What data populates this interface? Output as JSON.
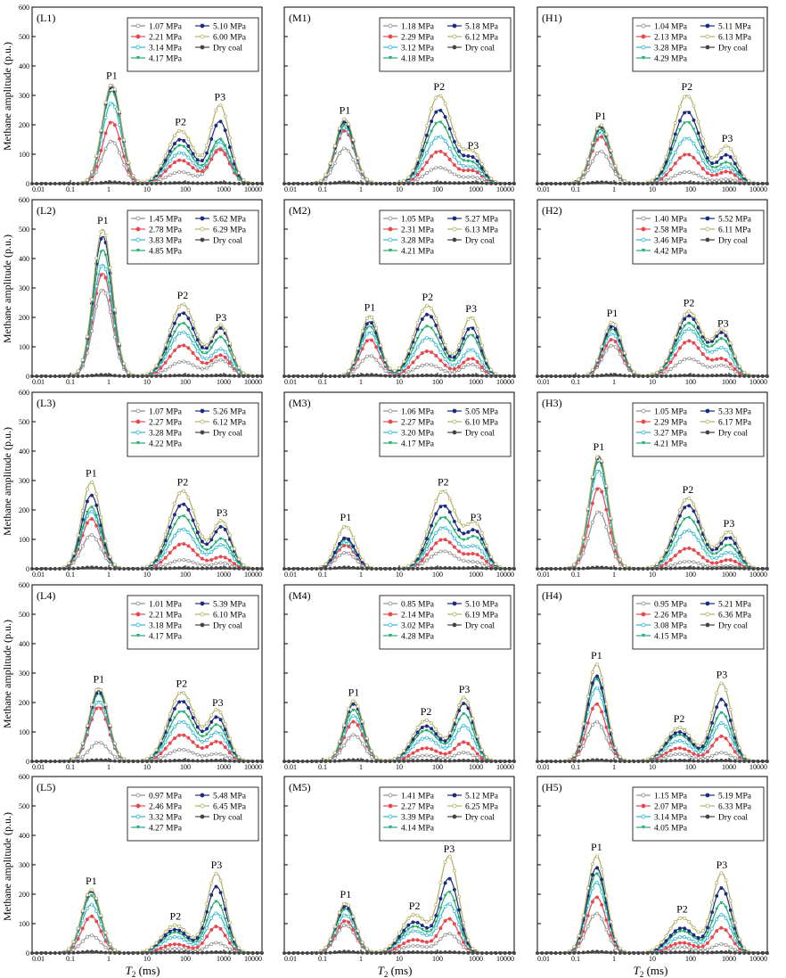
{
  "figure": {
    "y_axis_label": "Methane amplitude (p.u.)",
    "x_axis_label_main": "T",
    "x_axis_label_sub": "2",
    "x_axis_label_unit": " (ms)",
    "x_tick_labels": [
      "0.01",
      "0.1",
      "1",
      "10",
      "100",
      "1000",
      "10000"
    ],
    "y_tick_labels": [
      "0",
      "100",
      "200",
      "300",
      "400",
      "500",
      "600"
    ]
  },
  "styles": {
    "series_colors": [
      "#8e8e8e",
      "#e8474d",
      "#2cb6cf",
      "#1fae6f",
      "#1d2b7e",
      "#b3ad61",
      "#444444"
    ],
    "series_markers": [
      "open-circle",
      "filled-circle",
      "open-circle",
      "triangle",
      "filled-circle",
      "open-circle",
      "filled-circle"
    ]
  },
  "chart_data": [
    {
      "panel": "(L1)",
      "type": "line",
      "xlim": [
        0.01,
        10000
      ],
      "ylim": [
        0,
        600
      ],
      "x_scale": "log",
      "legend": [
        "1.07 MPa",
        "2.21 MPa",
        "3.14 MPa",
        "4.17 MPa",
        "5.10 MPa",
        "6.00 MPa",
        "Dry coal"
      ],
      "peaks": [
        {
          "label": "P1",
          "t2": 1.2,
          "values": [
            145,
            210,
            275,
            315,
            330,
            338,
            5
          ]
        },
        {
          "label": "P2",
          "t2": 75,
          "values": [
            40,
            80,
            105,
            130,
            150,
            180,
            3
          ]
        },
        {
          "label": "P3",
          "t2": 800,
          "values": [
            120,
            115,
            140,
            150,
            210,
            265,
            3
          ]
        }
      ]
    },
    {
      "panel": "(M1)",
      "type": "line",
      "xlim": [
        0.01,
        10000
      ],
      "ylim": [
        0,
        600
      ],
      "x_scale": "log",
      "legend": [
        "1.18 MPa",
        "2.29 MPa",
        "3.12 MPa",
        "4.18 MPa",
        "5.18 MPa",
        "6.12 MPa",
        "Dry coal"
      ],
      "peaks": [
        {
          "label": "P1",
          "t2": 0.38,
          "values": [
            120,
            180,
            190,
            200,
            210,
            220,
            5
          ]
        },
        {
          "label": "P2",
          "t2": 110,
          "values": [
            55,
            110,
            160,
            210,
            250,
            300,
            3
          ]
        },
        {
          "label": "P3",
          "t2": 850,
          "values": [
            20,
            40,
            50,
            65,
            80,
            100,
            3
          ]
        }
      ]
    },
    {
      "panel": "(H1)",
      "type": "line",
      "xlim": [
        0.01,
        10000
      ],
      "ylim": [
        0,
        600
      ],
      "x_scale": "log",
      "legend": [
        "1.04 MPa",
        "2.13 MPa",
        "3.28 MPa",
        "4.29 MPa",
        "5.11 MPa",
        "6.13 MPa",
        "Dry coal"
      ],
      "peaks": [
        {
          "label": "P1",
          "t2": 0.45,
          "values": [
            110,
            160,
            175,
            185,
            195,
            200,
            5
          ]
        },
        {
          "label": "P2",
          "t2": 80,
          "values": [
            40,
            100,
            155,
            210,
            245,
            300,
            3
          ]
        },
        {
          "label": "P3",
          "t2": 900,
          "values": [
            15,
            40,
            55,
            70,
            95,
            125,
            3
          ]
        }
      ]
    },
    {
      "panel": "(L2)",
      "type": "line",
      "xlim": [
        0.01,
        10000
      ],
      "ylim": [
        0,
        600
      ],
      "x_scale": "log",
      "legend": [
        "1.45 MPa",
        "2.78 MPa",
        "3.83 MPa",
        "4.85 MPa",
        "5.62 MPa",
        "6.29 MPa",
        "Dry coal"
      ],
      "peaks": [
        {
          "label": "P1",
          "t2": 0.7,
          "values": [
            295,
            350,
            380,
            430,
            475,
            500,
            5
          ]
        },
        {
          "label": "P2",
          "t2": 85,
          "values": [
            50,
            105,
            150,
            180,
            215,
            245,
            3
          ]
        },
        {
          "label": "P3",
          "t2": 850,
          "values": [
            55,
            70,
            90,
            130,
            160,
            170,
            3
          ]
        }
      ]
    },
    {
      "panel": "(M2)",
      "type": "line",
      "xlim": [
        0.01,
        10000
      ],
      "ylim": [
        0,
        600
      ],
      "x_scale": "log",
      "legend": [
        "1.05 MPa",
        "2.31 MPa",
        "3.28 MPa",
        "4.21 MPa",
        "5.27 MPa",
        "6.13 MPa",
        "Dry coal"
      ],
      "peaks": [
        {
          "label": "P1",
          "t2": 1.7,
          "values": [
            70,
            125,
            150,
            170,
            185,
            205,
            5
          ]
        },
        {
          "label": "P2",
          "t2": 55,
          "values": [
            40,
            85,
            130,
            170,
            210,
            240,
            3
          ]
        },
        {
          "label": "P3",
          "t2": 750,
          "values": [
            40,
            60,
            90,
            140,
            165,
            200,
            3
          ]
        }
      ]
    },
    {
      "panel": "(H2)",
      "type": "line",
      "xlim": [
        0.01,
        10000
      ],
      "ylim": [
        0,
        600
      ],
      "x_scale": "log",
      "legend": [
        "1.40 MPa",
        "2.58 MPa",
        "3.46 MPa",
        "4.42 MPa",
        "5.52 MPa",
        "6.11 MPa",
        "Dry coal"
      ],
      "peaks": [
        {
          "label": "P1",
          "t2": 0.9,
          "values": [
            105,
            125,
            145,
            160,
            170,
            185,
            5
          ]
        },
        {
          "label": "P2",
          "t2": 90,
          "values": [
            60,
            120,
            160,
            180,
            205,
            220,
            3
          ]
        },
        {
          "label": "P3",
          "t2": 700,
          "values": [
            35,
            55,
            90,
            120,
            140,
            150,
            3
          ]
        }
      ]
    },
    {
      "panel": "(L3)",
      "type": "line",
      "xlim": [
        0.01,
        10000
      ],
      "ylim": [
        0,
        600
      ],
      "x_scale": "log",
      "legend": [
        "1.07 MPa",
        "2.27 MPa",
        "3.28 MPa",
        "4.22 MPa",
        "5.26 MPa",
        "6.12 MPa",
        "Dry coal"
      ],
      "peaks": [
        {
          "label": "P1",
          "t2": 0.35,
          "values": [
            115,
            170,
            195,
            210,
            250,
            295,
            5
          ]
        },
        {
          "label": "P2",
          "t2": 85,
          "values": [
            30,
            85,
            135,
            180,
            220,
            265,
            3
          ]
        },
        {
          "label": "P3",
          "t2": 900,
          "values": [
            20,
            40,
            80,
            100,
            140,
            160,
            3
          ]
        }
      ]
    },
    {
      "panel": "(M3)",
      "type": "line",
      "xlim": [
        0.01,
        10000
      ],
      "ylim": [
        0,
        600
      ],
      "x_scale": "log",
      "legend": [
        "1.06 MPa",
        "2.27 MPa",
        "3.20 MPa",
        "4.17 MPa",
        "5.05 MPa",
        "6.10 MPa",
        "Dry coal"
      ],
      "peaks": [
        {
          "label": "P1",
          "t2": 0.4,
          "values": [
            55,
            80,
            90,
            100,
            105,
            145,
            5
          ]
        },
        {
          "label": "P2",
          "t2": 140,
          "values": [
            60,
            100,
            140,
            175,
            215,
            265,
            3
          ]
        },
        {
          "label": "P3",
          "t2": 1000,
          "values": [
            20,
            45,
            70,
            100,
            120,
            145,
            3
          ]
        }
      ]
    },
    {
      "panel": "(H3)",
      "type": "line",
      "xlim": [
        0.01,
        10000
      ],
      "ylim": [
        0,
        600
      ],
      "x_scale": "log",
      "legend": [
        "1.05 MPa",
        "2.29 MPa",
        "3.27 MPa",
        "4.21 MPa",
        "5.33 MPa",
        "6.17 MPa",
        "Dry coal"
      ],
      "peaks": [
        {
          "label": "P1",
          "t2": 0.4,
          "values": [
            195,
            275,
            335,
            365,
            380,
            385,
            5
          ]
        },
        {
          "label": "P2",
          "t2": 85,
          "values": [
            25,
            70,
            130,
            175,
            215,
            240,
            3
          ]
        },
        {
          "label": "P3",
          "t2": 1000,
          "values": [
            10,
            30,
            55,
            80,
            105,
            125,
            3
          ]
        }
      ]
    },
    {
      "panel": "(L4)",
      "type": "line",
      "xlim": [
        0.01,
        10000
      ],
      "ylim": [
        0,
        600
      ],
      "x_scale": "log",
      "legend": [
        "1.01 MPa",
        "2.21 MPa",
        "3.18 MPa",
        "4.17 MPa",
        "5.39 MPa",
        "6.10 MPa",
        "Dry coal"
      ],
      "peaks": [
        {
          "label": "P1",
          "t2": 0.55,
          "values": [
            65,
            185,
            205,
            230,
            240,
            250,
            5
          ]
        },
        {
          "label": "P2",
          "t2": 80,
          "values": [
            40,
            90,
            135,
            170,
            205,
            235,
            3
          ]
        },
        {
          "label": "P3",
          "t2": 700,
          "values": [
            25,
            65,
            95,
            120,
            145,
            170,
            3
          ]
        }
      ]
    },
    {
      "panel": "(M4)",
      "type": "line",
      "xlim": [
        0.01,
        10000
      ],
      "ylim": [
        0,
        600
      ],
      "x_scale": "log",
      "legend": [
        "0.85 MPa",
        "2.14 MPa",
        "3.02 MPa",
        "4.28 MPa",
        "5.10 MPa",
        "6.19 MPa",
        "Dry coal"
      ],
      "peaks": [
        {
          "label": "P1",
          "t2": 0.65,
          "values": [
            90,
            135,
            155,
            175,
            195,
            205,
            5
          ]
        },
        {
          "label": "P2",
          "t2": 50,
          "values": [
            20,
            45,
            80,
            105,
            120,
            140,
            3
          ]
        },
        {
          "label": "P3",
          "t2": 500,
          "values": [
            30,
            65,
            120,
            160,
            195,
            215,
            3
          ]
        }
      ]
    },
    {
      "panel": "(H4)",
      "type": "line",
      "xlim": [
        0.01,
        10000
      ],
      "ylim": [
        0,
        600
      ],
      "x_scale": "log",
      "legend": [
        "0.95 MPa",
        "2.26 MPa",
        "3.08 MPa",
        "4.15 MPa",
        "5.21 MPa",
        "6.36 MPa",
        "Dry coal"
      ],
      "peaks": [
        {
          "label": "P1",
          "t2": 0.35,
          "values": [
            135,
            195,
            250,
            280,
            290,
            330,
            5
          ]
        },
        {
          "label": "P2",
          "t2": 50,
          "values": [
            25,
            45,
            70,
            90,
            100,
            115,
            3
          ]
        },
        {
          "label": "P3",
          "t2": 650,
          "values": [
            30,
            85,
            130,
            165,
            210,
            265,
            3
          ]
        }
      ]
    },
    {
      "panel": "(L5)",
      "type": "line",
      "xlim": [
        0.01,
        10000
      ],
      "ylim": [
        0,
        600
      ],
      "x_scale": "log",
      "legend": [
        "0.97 MPa",
        "2.46 MPa",
        "3.32 MPa",
        "4.27 MPa",
        "5.48 MPa",
        "6.45 MPa",
        "Dry coal"
      ],
      "peaks": [
        {
          "label": "P1",
          "t2": 0.35,
          "values": [
            60,
            125,
            165,
            195,
            210,
            215,
            5
          ]
        },
        {
          "label": "P2",
          "t2": 55,
          "values": [
            15,
            30,
            55,
            70,
            80,
            95,
            3
          ]
        },
        {
          "label": "P3",
          "t2": 650,
          "values": [
            35,
            90,
            135,
            175,
            225,
            270,
            3
          ]
        }
      ]
    },
    {
      "panel": "(M5)",
      "type": "line",
      "xlim": [
        0.01,
        10000
      ],
      "ylim": [
        0,
        600
      ],
      "x_scale": "log",
      "legend": [
        "1.41 MPa",
        "2.27 MPa",
        "3.39 MPa",
        "4.14 MPa",
        "5.12 MPa",
        "6.25 MPa",
        "Dry coal"
      ],
      "peaks": [
        {
          "label": "P1",
          "t2": 0.4,
          "values": [
            95,
            110,
            130,
            150,
            160,
            170,
            5
          ]
        },
        {
          "label": "P2",
          "t2": 25,
          "values": [
            25,
            45,
            75,
            90,
            105,
            130,
            3
          ]
        },
        {
          "label": "P3",
          "t2": 200,
          "values": [
            65,
            115,
            165,
            205,
            250,
            325,
            3
          ]
        }
      ]
    },
    {
      "panel": "(H5)",
      "type": "line",
      "xlim": [
        0.01,
        10000
      ],
      "ylim": [
        0,
        600
      ],
      "x_scale": "log",
      "legend": [
        "1.15 MPa",
        "2.07 MPa",
        "3.14 MPa",
        "4.05 MPa",
        "5.19 MPa",
        "6.33 MPa",
        "Dry coal"
      ],
      "peaks": [
        {
          "label": "P1",
          "t2": 0.35,
          "values": [
            135,
            190,
            240,
            270,
            290,
            330,
            5
          ]
        },
        {
          "label": "P2",
          "t2": 60,
          "values": [
            20,
            35,
            55,
            75,
            85,
            120,
            3
          ]
        },
        {
          "label": "P3",
          "t2": 650,
          "values": [
            30,
            85,
            130,
            170,
            220,
            270,
            3
          ]
        }
      ]
    }
  ]
}
